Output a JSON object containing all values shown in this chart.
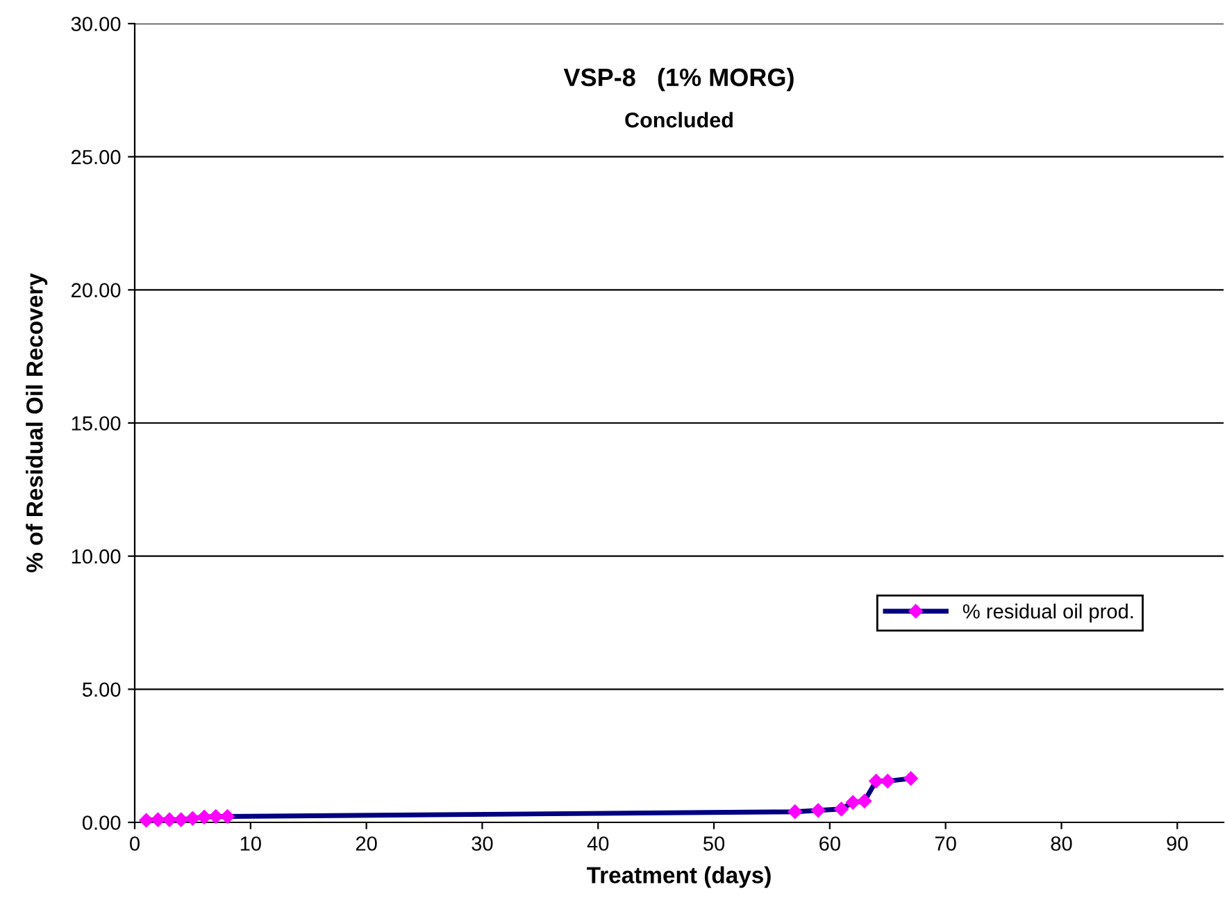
{
  "chart_data": {
    "type": "line",
    "title": "VSP-8   (1% MORG)",
    "subtitle": "Concluded",
    "xlabel": "Treatment (days)",
    "ylabel": "% of Residual Oil Recovery",
    "x": [
      1,
      2,
      3,
      4,
      5,
      6,
      7,
      8,
      57,
      59,
      61,
      62,
      63,
      64,
      65,
      67
    ],
    "series": [
      {
        "name": "% residual oil prod.",
        "color": "#000080",
        "values": [
          0.08,
          0.1,
          0.1,
          0.1,
          0.15,
          0.2,
          0.22,
          0.22,
          0.4,
          0.45,
          0.5,
          0.75,
          0.8,
          1.55,
          1.55,
          1.65
        ]
      }
    ],
    "xlim": [
      0,
      94
    ],
    "xticks": [
      0,
      10,
      20,
      30,
      40,
      50,
      60,
      70,
      80,
      90
    ],
    "ylim": [
      0,
      30
    ],
    "yticks": [
      {
        "value": 0,
        "label": "0.00"
      },
      {
        "value": 5,
        "label": "5.00"
      },
      {
        "value": 10,
        "label": "10.00"
      },
      {
        "value": 15,
        "label": "15.00"
      },
      {
        "value": 20,
        "label": "20.00"
      },
      {
        "value": 25,
        "label": "25.00"
      },
      {
        "value": 30,
        "label": "30.00"
      }
    ],
    "grid": "y",
    "legend": "right",
    "marker": "diamond",
    "line_style": "solid"
  }
}
